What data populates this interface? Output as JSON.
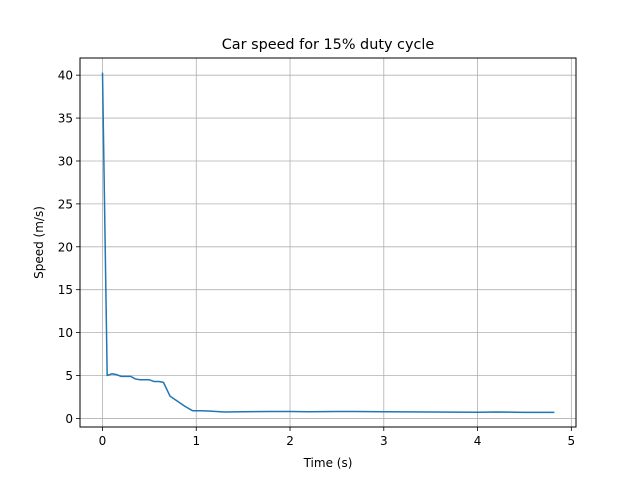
{
  "chart_data": {
    "type": "line",
    "title": "Car speed for 15% duty cycle",
    "xlabel": "Time (s)",
    "ylabel": "Speed (m/s)",
    "xlim": [
      -0.24,
      5.05
    ],
    "ylim": [
      -1.0,
      42.0
    ],
    "xticks": [
      0,
      1,
      2,
      3,
      4,
      5
    ],
    "yticks": [
      0,
      5,
      10,
      15,
      20,
      25,
      30,
      35,
      40
    ],
    "grid": true,
    "line_color": "#1f77b4",
    "series": [
      {
        "x": [
          0.0,
          0.05,
          0.1,
          0.15,
          0.2,
          0.25,
          0.3,
          0.35,
          0.4,
          0.45,
          0.5,
          0.55,
          0.6,
          0.65,
          0.72,
          0.8,
          0.88,
          0.96,
          1.05,
          1.15,
          1.3,
          1.5,
          1.8,
          2.0,
          2.2,
          2.5,
          2.7,
          3.0,
          3.5,
          4.0,
          4.2,
          4.5,
          4.82
        ],
        "y": [
          40.3,
          5.0,
          5.2,
          5.1,
          4.9,
          4.9,
          4.9,
          4.6,
          4.5,
          4.5,
          4.5,
          4.3,
          4.3,
          4.2,
          2.6,
          2.0,
          1.4,
          0.9,
          0.9,
          0.85,
          0.75,
          0.78,
          0.8,
          0.8,
          0.78,
          0.8,
          0.8,
          0.78,
          0.75,
          0.72,
          0.75,
          0.7,
          0.7
        ]
      }
    ]
  }
}
